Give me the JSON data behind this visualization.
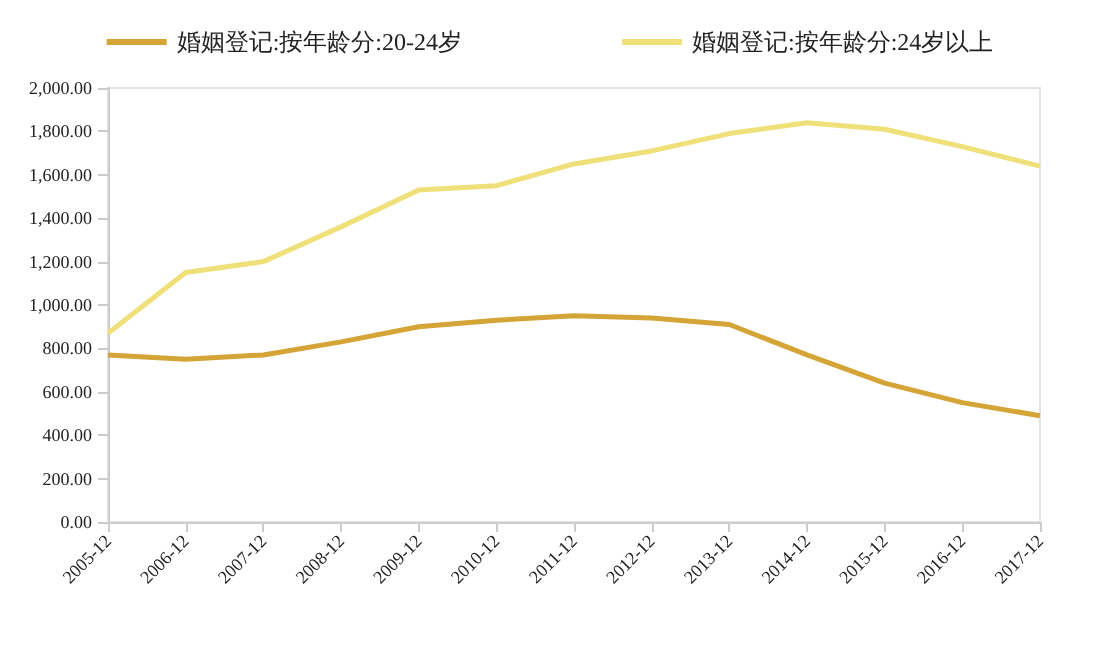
{
  "chart_data": {
    "type": "line",
    "categories": [
      "2005-12",
      "2006-12",
      "2007-12",
      "2008-12",
      "2009-12",
      "2010-12",
      "2011-12",
      "2012-12",
      "2013-12",
      "2014-12",
      "2015-12",
      "2016-12",
      "2017-12"
    ],
    "series": [
      {
        "name": "婚姻登记:按年龄分:20-24岁",
        "color": "#d4a437",
        "values": [
          770,
          750,
          770,
          830,
          900,
          930,
          950,
          940,
          910,
          770,
          640,
          550,
          490
        ]
      },
      {
        "name": "婚姻登记:按年龄分:24岁以上",
        "color": "#f0e07a",
        "values": [
          870,
          1150,
          1200,
          1360,
          1530,
          1550,
          1650,
          1710,
          1790,
          1840,
          1810,
          1730,
          1640
        ]
      }
    ],
    "ylim": [
      0,
      2000
    ],
    "yticks": [
      {
        "value": 0,
        "label": "0.00"
      },
      {
        "value": 200,
        "label": "200.00"
      },
      {
        "value": 400,
        "label": "400.00"
      },
      {
        "value": 600,
        "label": "600.00"
      },
      {
        "value": 800,
        "label": "800.00"
      },
      {
        "value": 1000,
        "label": "1,000.00"
      },
      {
        "value": 1200,
        "label": "1,200.00"
      },
      {
        "value": 1400,
        "label": "1,400.00"
      },
      {
        "value": 1600,
        "label": "1,600.00"
      },
      {
        "value": 1800,
        "label": "1,800.00"
      },
      {
        "value": 2000,
        "label": "2,000.00"
      }
    ],
    "grid": false,
    "legend": "top",
    "marker": "none",
    "line_style": "solid"
  }
}
